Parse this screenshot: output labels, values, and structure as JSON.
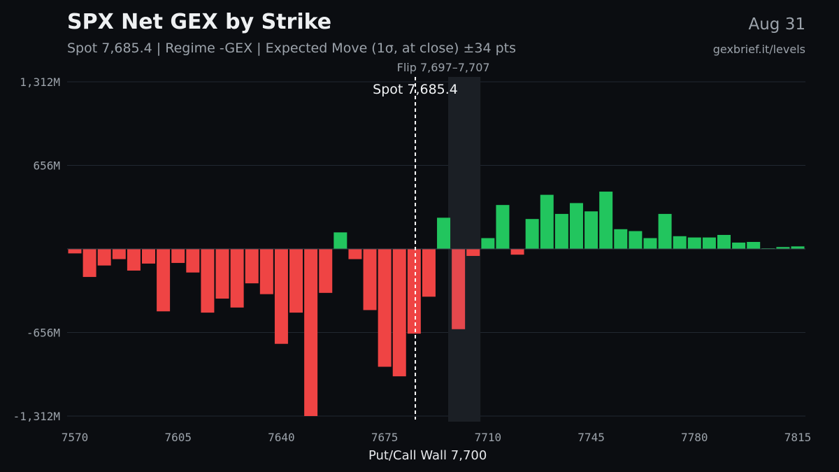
{
  "header": {
    "title": "SPX Net GEX by Strike",
    "subtitle": "Spot 7,685.4 | Regime -GEX | Expected Move (1σ, at close) ±34 pts",
    "date": "Aug 31",
    "source": "gexbrief.it/levels"
  },
  "colors": {
    "positive": "#22c55e",
    "negative": "#ef4444",
    "wall_bar": "#e5484d",
    "flip_band": "#1b1f25",
    "grid": "#222831",
    "background": "#0b0d11"
  },
  "chart_data": {
    "type": "bar",
    "title": "SPX Net GEX by Strike",
    "xlabel": "",
    "ylabel": "",
    "x_ticks": [
      7570,
      7605,
      7640,
      7675,
      7710,
      7745,
      7780,
      7815
    ],
    "xlim": [
      7570,
      7815
    ],
    "y_ticks": [
      {
        "value": 1312,
        "label": "1,312M"
      },
      {
        "value": 656,
        "label": "656M"
      },
      {
        "value": -656,
        "label": "-656M"
      },
      {
        "value": -1312,
        "label": "-1,312M"
      }
    ],
    "ylim": [
      -1312,
      1312
    ],
    "grid": true,
    "units": "M",
    "strikes": [
      7570,
      7575,
      7580,
      7585,
      7590,
      7595,
      7600,
      7605,
      7610,
      7615,
      7620,
      7625,
      7630,
      7635,
      7640,
      7645,
      7650,
      7655,
      7660,
      7665,
      7670,
      7675,
      7680,
      7685,
      7690,
      7695,
      7700,
      7705,
      7710,
      7715,
      7720,
      7725,
      7730,
      7735,
      7740,
      7745,
      7750,
      7755,
      7760,
      7765,
      7770,
      7775,
      7780,
      7785,
      7790,
      7795,
      7800,
      7805,
      7810,
      7815
    ],
    "values": [
      -35,
      -220,
      -130,
      -80,
      -170,
      -115,
      -490,
      -110,
      -185,
      -500,
      -390,
      -460,
      -270,
      -355,
      -745,
      -500,
      -1312,
      -345,
      130,
      -80,
      -480,
      -925,
      -1000,
      -665,
      -375,
      245,
      -630,
      -55,
      85,
      345,
      -45,
      235,
      425,
      275,
      360,
      295,
      450,
      155,
      140,
      85,
      275,
      100,
      90,
      90,
      110,
      50,
      55,
      5,
      15,
      20
    ],
    "annotations": {
      "spot": {
        "value": 7685.4,
        "label": "Spot 7,685.4"
      },
      "flip": {
        "range": [
          7697,
          7707
        ],
        "label": "Flip 7,697–7,707"
      },
      "wall": {
        "value": 7700,
        "label": "Put/Call Wall 7,700"
      }
    }
  }
}
